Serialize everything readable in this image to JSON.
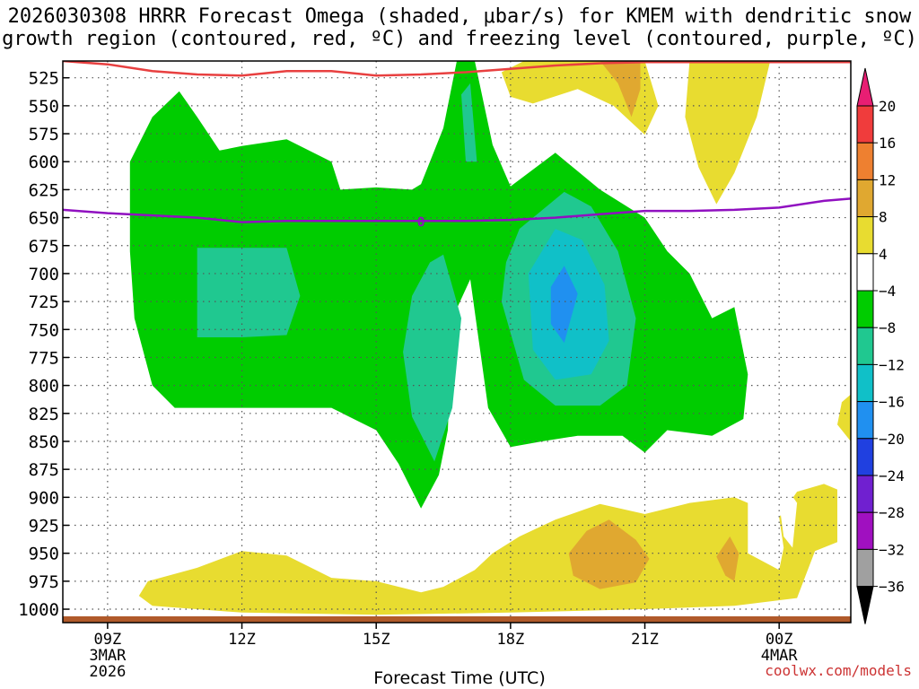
{
  "chart_data": {
    "type": "heatmap",
    "title_line1": "2026030308 HRRR Forecast Omega (shaded, μbar/s) for KMEM with dendritic snow",
    "title_line2": "growth region (contoured, red, ºC) and freezing level (contoured, purple, ºC)",
    "xlabel": "Forecast Time (UTC)",
    "credit": "coolwx.com/models",
    "x_range": [
      8,
      25.6
    ],
    "y_range": [
      510,
      1012
    ],
    "y_ticks": [
      525,
      550,
      575,
      600,
      625,
      650,
      675,
      700,
      725,
      750,
      775,
      800,
      825,
      850,
      875,
      900,
      925,
      950,
      975,
      1000
    ],
    "x_ticks": [
      {
        "hour": 9,
        "label": "09Z",
        "sub1": "3MAR",
        "sub2": "2026"
      },
      {
        "hour": 12,
        "label": "12Z",
        "sub1": "",
        "sub2": ""
      },
      {
        "hour": 15,
        "label": "15Z",
        "sub1": "",
        "sub2": ""
      },
      {
        "hour": 18,
        "label": "18Z",
        "sub1": "",
        "sub2": ""
      },
      {
        "hour": 21,
        "label": "21Z",
        "sub1": "",
        "sub2": ""
      },
      {
        "hour": 24,
        "label": "00Z",
        "sub1": "4MAR",
        "sub2": ""
      }
    ],
    "colorbar": {
      "labels": [
        "20",
        "16",
        "12",
        "8",
        "4",
        "−4",
        "−8",
        "−12",
        "−16",
        "−20",
        "−24",
        "−28",
        "−32",
        "−36"
      ],
      "colors": [
        "#e81e73",
        "#f03c3c",
        "#ee8030",
        "#e0a830",
        "#e8dc30",
        "#ffffff",
        "#00cc00",
        "#20c890",
        "#10c0c8",
        "#2090f0",
        "#2040e0",
        "#7020d0",
        "#a010c0",
        "#a0a0a0",
        "#000000"
      ]
    },
    "freezing_level": {
      "label": "0",
      "color": "#9010c0",
      "points": [
        [
          8,
          643
        ],
        [
          9,
          646
        ],
        [
          10,
          648
        ],
        [
          11,
          650
        ],
        [
          12,
          654
        ],
        [
          13,
          653
        ],
        [
          14,
          653
        ],
        [
          15,
          653
        ],
        [
          16,
          653
        ],
        [
          17,
          653
        ],
        [
          18,
          652
        ],
        [
          19,
          650
        ],
        [
          20,
          647
        ],
        [
          21,
          644
        ],
        [
          22,
          644
        ],
        [
          23,
          643
        ],
        [
          24,
          641
        ],
        [
          25,
          635
        ],
        [
          25.6,
          633
        ]
      ]
    },
    "dgz_level": {
      "color": "#e84040",
      "points": [
        [
          8,
          510
        ],
        [
          9,
          513
        ],
        [
          10,
          519
        ],
        [
          11,
          522
        ],
        [
          12,
          523
        ],
        [
          13,
          519
        ],
        [
          14,
          519
        ],
        [
          15,
          523
        ],
        [
          16,
          522
        ],
        [
          17,
          520
        ],
        [
          18,
          517
        ],
        [
          19,
          514
        ],
        [
          20,
          512
        ],
        [
          21,
          511
        ],
        [
          22,
          511
        ],
        [
          23,
          511
        ],
        [
          24,
          511
        ],
        [
          25,
          511
        ],
        [
          25.6,
          511
        ]
      ]
    },
    "regions": [
      {
        "fill": "#00cc00",
        "pts": [
          [
            9.5,
            600
          ],
          [
            10,
            560
          ],
          [
            10.6,
            537
          ],
          [
            11,
            560
          ],
          [
            11.5,
            590
          ],
          [
            12,
            586
          ],
          [
            13,
            580
          ],
          [
            14,
            600
          ],
          [
            14.2,
            625
          ],
          [
            15,
            623
          ],
          [
            15.8,
            625
          ],
          [
            16,
            620
          ],
          [
            16.5,
            570
          ],
          [
            16.8,
            510
          ],
          [
            17.2,
            510
          ],
          [
            17.6,
            585
          ],
          [
            18,
            622
          ],
          [
            19,
            592
          ],
          [
            20,
            625
          ],
          [
            21,
            650
          ],
          [
            21.5,
            680
          ],
          [
            22,
            700
          ],
          [
            22.5,
            740
          ],
          [
            23,
            730
          ],
          [
            23.3,
            790
          ],
          [
            23.2,
            830
          ],
          [
            22.5,
            845
          ],
          [
            21.5,
            840
          ],
          [
            21,
            860
          ],
          [
            20.5,
            845
          ],
          [
            19.5,
            845
          ],
          [
            18.7,
            850
          ],
          [
            18,
            855
          ],
          [
            17.5,
            820
          ],
          [
            17.1,
            705
          ],
          [
            16.7,
            740
          ],
          [
            16.6,
            840
          ],
          [
            16.4,
            880
          ],
          [
            16,
            910
          ],
          [
            15.5,
            870
          ],
          [
            15,
            840
          ],
          [
            14,
            820
          ],
          [
            12,
            820
          ],
          [
            10.5,
            820
          ],
          [
            10,
            800
          ],
          [
            9.6,
            740
          ],
          [
            9.5,
            680
          ]
        ]
      },
      {
        "fill": "#20c890",
        "pts": [
          [
            11,
            677
          ],
          [
            12,
            677
          ],
          [
            13,
            677
          ],
          [
            13.3,
            720
          ],
          [
            13,
            755
          ],
          [
            12,
            757
          ],
          [
            11,
            757
          ]
        ]
      },
      {
        "fill": "#20c890",
        "pts": [
          [
            16.5,
            683
          ],
          [
            16.9,
            740
          ],
          [
            16.7,
            820
          ],
          [
            16.3,
            868
          ],
          [
            15.8,
            828
          ],
          [
            15.6,
            770
          ],
          [
            15.8,
            720
          ],
          [
            16.2,
            690
          ]
        ]
      },
      {
        "fill": "#20c890",
        "pts": [
          [
            16.9,
            540
          ],
          [
            17.1,
            530
          ],
          [
            17.25,
            600
          ],
          [
            17.0,
            600
          ]
        ]
      },
      {
        "fill": "#20c890",
        "pts": [
          [
            18.2,
            660
          ],
          [
            19.2,
            627
          ],
          [
            19.8,
            640
          ],
          [
            20.4,
            680
          ],
          [
            20.8,
            740
          ],
          [
            20.6,
            800
          ],
          [
            20,
            818
          ],
          [
            19,
            818
          ],
          [
            18.3,
            795
          ],
          [
            17.8,
            725
          ],
          [
            17.9,
            690
          ]
        ]
      },
      {
        "fill": "#10c0c8",
        "pts": [
          [
            18.4,
            700
          ],
          [
            19,
            660
          ],
          [
            19.6,
            670
          ],
          [
            20.1,
            710
          ],
          [
            20.2,
            760
          ],
          [
            19.8,
            790
          ],
          [
            19,
            795
          ],
          [
            18.5,
            768
          ]
        ]
      },
      {
        "fill": "#2090f0",
        "pts": [
          [
            18.9,
            712
          ],
          [
            19.2,
            693
          ],
          [
            19.5,
            718
          ],
          [
            19.2,
            762
          ],
          [
            18.9,
            745
          ]
        ]
      },
      {
        "fill": "#e8dc30",
        "pts": [
          [
            18,
            542
          ],
          [
            17.8,
            520
          ],
          [
            18.3,
            510
          ],
          [
            21,
            510
          ],
          [
            21.3,
            550
          ],
          [
            21,
            576
          ],
          [
            20.3,
            550
          ],
          [
            19.5,
            535
          ],
          [
            18.5,
            548
          ]
        ]
      },
      {
        "fill": "#e8dc30",
        "pts": [
          [
            22,
            510
          ],
          [
            23.8,
            510
          ],
          [
            23.5,
            560
          ],
          [
            23,
            610
          ],
          [
            22.6,
            638
          ],
          [
            22.2,
            605
          ],
          [
            21.9,
            560
          ]
        ]
      },
      {
        "fill": "#e0a830",
        "pts": [
          [
            20,
            510
          ],
          [
            20.9,
            510
          ],
          [
            20.9,
            535
          ],
          [
            20.7,
            560
          ],
          [
            20.4,
            530
          ]
        ]
      },
      {
        "fill": "#e8dc30",
        "pts": [
          [
            25.6,
            808
          ],
          [
            25.4,
            815
          ],
          [
            25.3,
            835
          ],
          [
            25.6,
            850
          ]
        ]
      },
      {
        "fill": "#e8dc30",
        "pts": [
          [
            9.7,
            988
          ],
          [
            9.9,
            975
          ],
          [
            11,
            963
          ],
          [
            12,
            948
          ],
          [
            13,
            952
          ],
          [
            14,
            972
          ],
          [
            15,
            975
          ],
          [
            16,
            985
          ],
          [
            16.5,
            980
          ],
          [
            17.2,
            965
          ],
          [
            17.6,
            950
          ],
          [
            18.2,
            935
          ],
          [
            19,
            920
          ],
          [
            20,
            906
          ],
          [
            21,
            915
          ],
          [
            22,
            905
          ],
          [
            23,
            900
          ],
          [
            23.3,
            905
          ],
          [
            23.3,
            950
          ],
          [
            24,
            965
          ],
          [
            24.1,
            945
          ],
          [
            24,
            918
          ],
          [
            24.4,
            895
          ],
          [
            25,
            888
          ],
          [
            25.3,
            893
          ],
          [
            25.3,
            940
          ],
          [
            24.8,
            948
          ],
          [
            24.4,
            990
          ],
          [
            23,
            997
          ],
          [
            21,
            1000
          ],
          [
            18,
            1003
          ],
          [
            15,
            1005
          ],
          [
            12,
            1003
          ],
          [
            10,
            997
          ]
        ]
      },
      {
        "fill": "#e0a830",
        "pts": [
          [
            19.3,
            950
          ],
          [
            19.7,
            930
          ],
          [
            20.2,
            920
          ],
          [
            20.8,
            938
          ],
          [
            21.1,
            955
          ],
          [
            20.8,
            976
          ],
          [
            20,
            982
          ],
          [
            19.4,
            970
          ]
        ]
      },
      {
        "fill": "#e0a830",
        "pts": [
          [
            22.6,
            953
          ],
          [
            22.9,
            935
          ],
          [
            23.1,
            950
          ],
          [
            23,
            975
          ],
          [
            22.8,
            970
          ]
        ]
      },
      {
        "fill": "#ffffff",
        "pts": [
          [
            24,
            905
          ],
          [
            24.1,
            888
          ],
          [
            24.4,
            905
          ],
          [
            24.3,
            945
          ],
          [
            24.1,
            935
          ]
        ]
      }
    ],
    "ground_color": "#b05a2a"
  }
}
